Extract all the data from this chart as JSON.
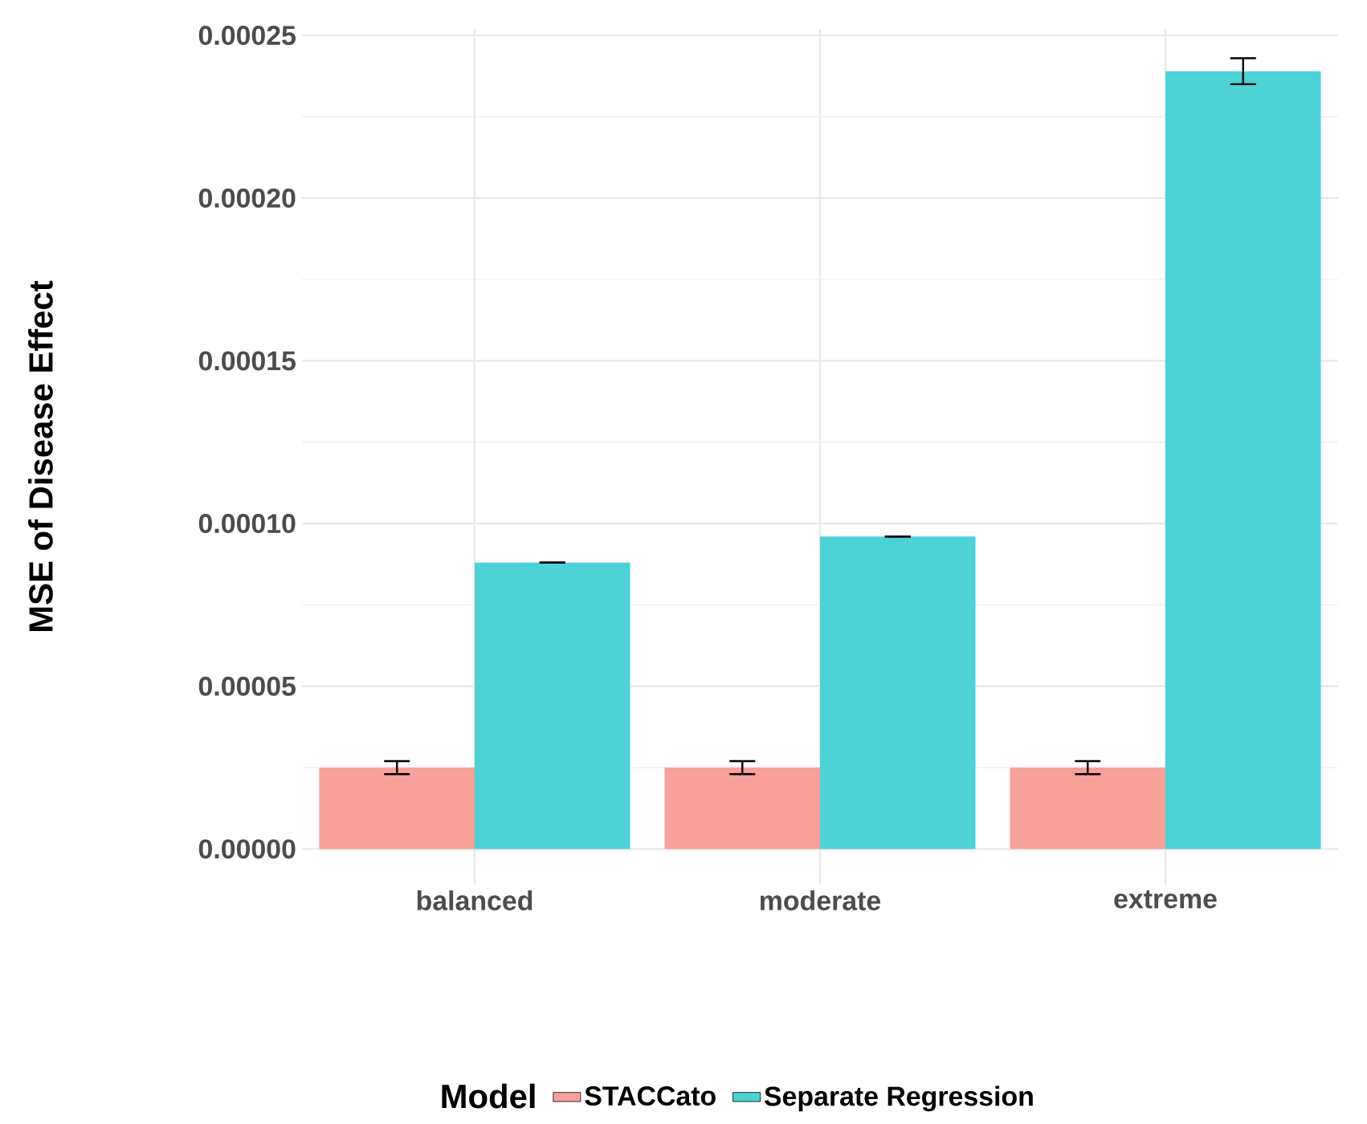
{
  "chart_data": {
    "type": "bar",
    "ylabel": "MSE of Disease Effect",
    "legend_title": "Model",
    "categories": [
      "balanced",
      "moderate",
      "extreme"
    ],
    "series": [
      {
        "name": "STACCato",
        "color": "#f8a09a",
        "values": [
          2.5e-05,
          2.5e-05,
          2.5e-05
        ],
        "errors": [
          2e-06,
          2e-06,
          2e-06
        ]
      },
      {
        "name": "Separate Regression",
        "color": "#4dd2d6",
        "values": [
          8.8e-05,
          9.6e-05,
          0.000239
        ],
        "errors": [
          0,
          0,
          4e-06
        ]
      }
    ],
    "ylim": [
      -1.1e-05,
      0.000252
    ],
    "yticks": [
      {
        "value": 0,
        "label": "0.00000"
      },
      {
        "value": 5e-05,
        "label": "0.00005"
      },
      {
        "value": 0.0001,
        "label": "0.00010"
      },
      {
        "value": 0.00015,
        "label": "0.00015"
      },
      {
        "value": 0.0002,
        "label": "0.00020"
      },
      {
        "value": 0.00025,
        "label": "0.00025"
      }
    ],
    "grid": true,
    "legend": "bottom"
  }
}
